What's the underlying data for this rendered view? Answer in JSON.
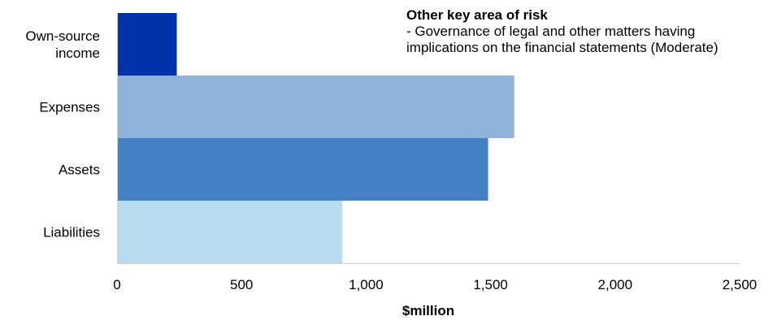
{
  "chart_data": {
    "type": "bar",
    "orientation": "horizontal",
    "categories": [
      [
        "Own-source",
        "income"
      ],
      [
        "Expenses"
      ],
      [
        "Assets"
      ],
      [
        "Liabilities"
      ]
    ],
    "values": [
      240,
      1595,
      1490,
      905
    ],
    "colors": [
      "#0033aa",
      "#8fb3da",
      "#4680c4",
      "#b6daee"
    ],
    "xlabel": "$million",
    "xlim": [
      0,
      2500
    ],
    "xticks": [
      0,
      500,
      1000,
      1500,
      2000,
      2500
    ],
    "xtick_labels": [
      "0",
      "500",
      "1,000",
      "1,500",
      "2,000",
      "2,500"
    ],
    "grid": false,
    "annotation": {
      "title": "Other key area of risk",
      "lines": [
        "- Governance of legal and other matters having",
        "implications on the financial statements (Moderate)"
      ]
    }
  }
}
